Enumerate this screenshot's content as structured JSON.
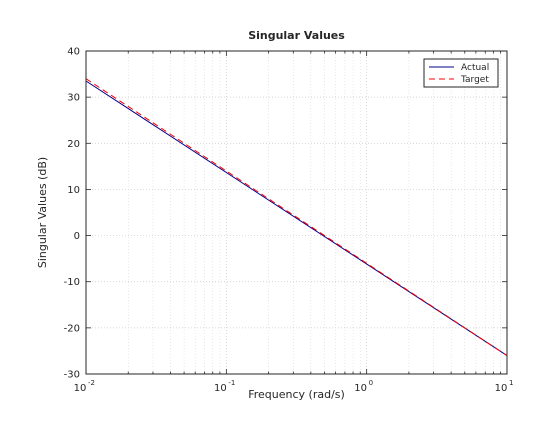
{
  "chart_data": {
    "type": "line",
    "title": "Singular Values",
    "xlabel": "Frequency (rad/s)",
    "ylabel": "Singular Values (dB)",
    "xscale": "log",
    "xlim": [
      0.01,
      10
    ],
    "ylim": [
      -30,
      40
    ],
    "xticks": [
      {
        "base": "10",
        "exp": "-2"
      },
      {
        "base": "10",
        "exp": "-1"
      },
      {
        "base": "10",
        "exp": "0"
      },
      {
        "base": "10",
        "exp": "1"
      }
    ],
    "yticks": [
      -30,
      -20,
      -10,
      0,
      10,
      20,
      30,
      40
    ],
    "grid": true,
    "legend_position": "top-right",
    "series": [
      {
        "name": "Actual",
        "color": "#00008b",
        "style": "solid",
        "x": [
          0.01,
          10
        ],
        "y": [
          33.5,
          -26
        ]
      },
      {
        "name": "Target",
        "color": "#ff0000",
        "style": "dashed",
        "x": [
          0.01,
          10
        ],
        "y": [
          34,
          -26
        ]
      }
    ]
  }
}
